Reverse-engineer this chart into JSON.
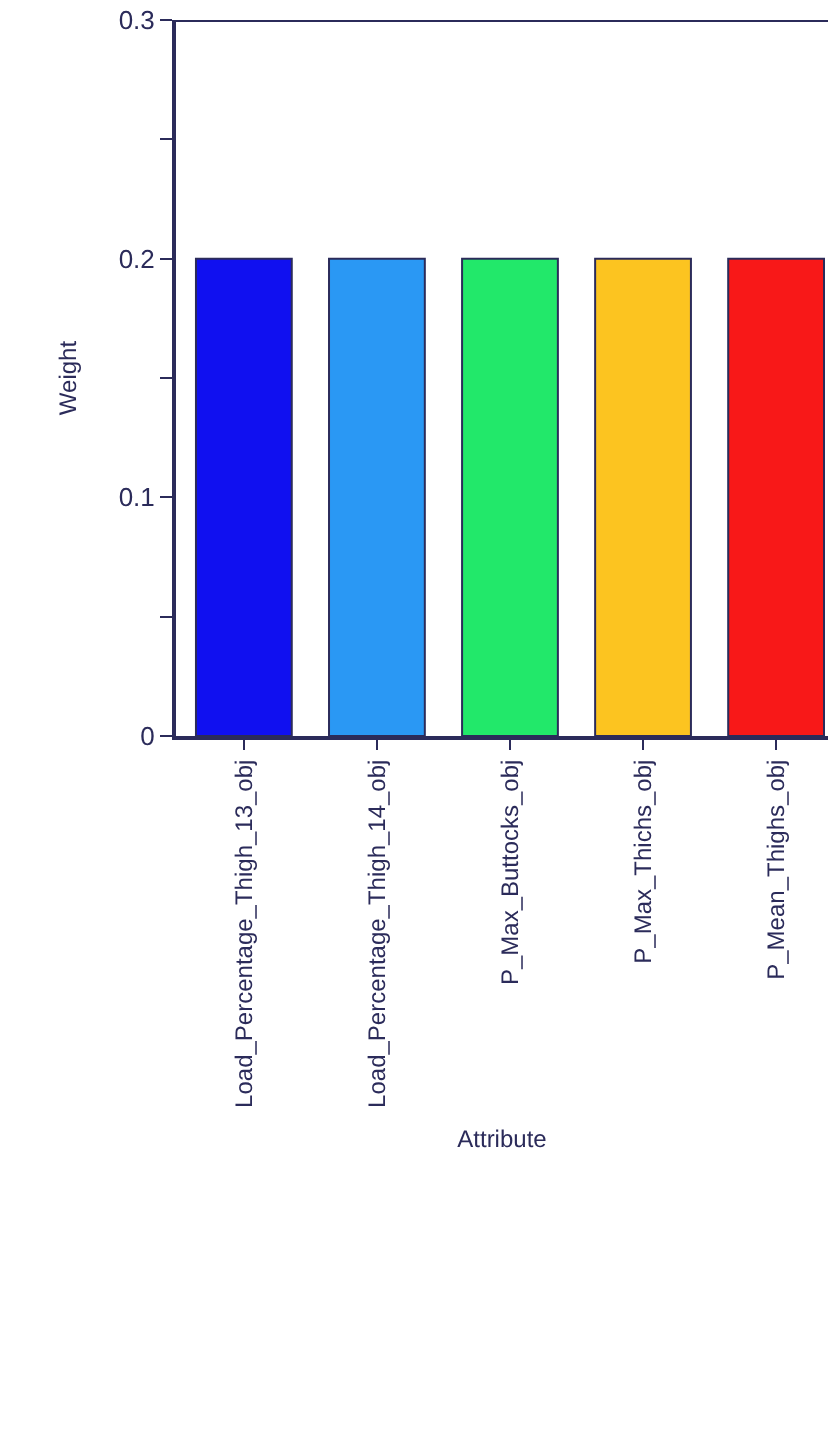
{
  "chart_data": {
    "type": "bar",
    "xlabel": "Attribute",
    "ylabel": "Weight",
    "categories": [
      "Load_Percentage_Thigh_13_obj",
      "Load_Percentage_Thigh_14_obj",
      "P_Max_Buttocks_obj",
      "P_Max_Thichs_obj",
      "P_Mean_Thighs_obj"
    ],
    "values": [
      0.2,
      0.2,
      0.2,
      0.2,
      0.2
    ],
    "colors": [
      "#1010f0",
      "#2a98f4",
      "#22e86a",
      "#fcc420",
      "#f81818"
    ],
    "ylim": [
      0,
      0.3
    ],
    "yticks": [
      0,
      {
        "value": 0.05,
        "label": null
      },
      0.1,
      {
        "value": 0.15,
        "label": null
      },
      0.2,
      {
        "value": 0.25,
        "label": null
      },
      0.3
    ]
  }
}
